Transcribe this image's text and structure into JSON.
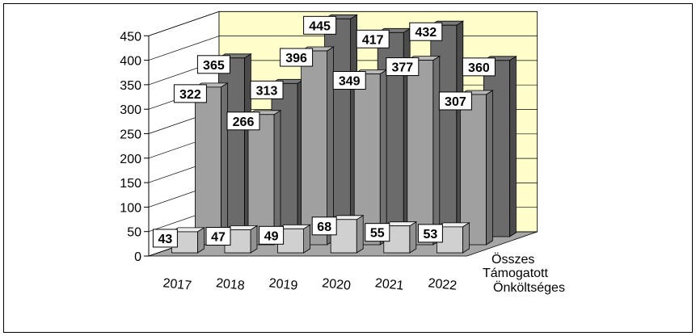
{
  "chart_data": {
    "type": "bar",
    "style": "3d-clustered-depth",
    "categories": [
      "2017",
      "2018",
      "2019",
      "2020",
      "2021",
      "2022"
    ],
    "series": [
      {
        "name": "Önköltséges",
        "values": [
          43,
          47,
          49,
          68,
          55,
          53
        ]
      },
      {
        "name": "Támogatott",
        "values": [
          322,
          266,
          396,
          349,
          377,
          307
        ]
      },
      {
        "name": "Összes",
        "values": [
          365,
          313,
          445,
          417,
          432,
          360
        ]
      }
    ],
    "y_ticks": [
      "0",
      "50",
      "100",
      "150",
      "200",
      "250",
      "300",
      "350",
      "400",
      "450"
    ],
    "ylim": [
      0,
      450
    ],
    "title": "",
    "xlabel": "",
    "ylabel": "",
    "grid": true,
    "colors": {
      "back_wall": "#ffffcc",
      "floor": "#a6a6a6",
      "onkoltseges": "#d0d0d0",
      "tamogatott": "#a0a0a0",
      "osszes": "#6b6b6b"
    }
  }
}
